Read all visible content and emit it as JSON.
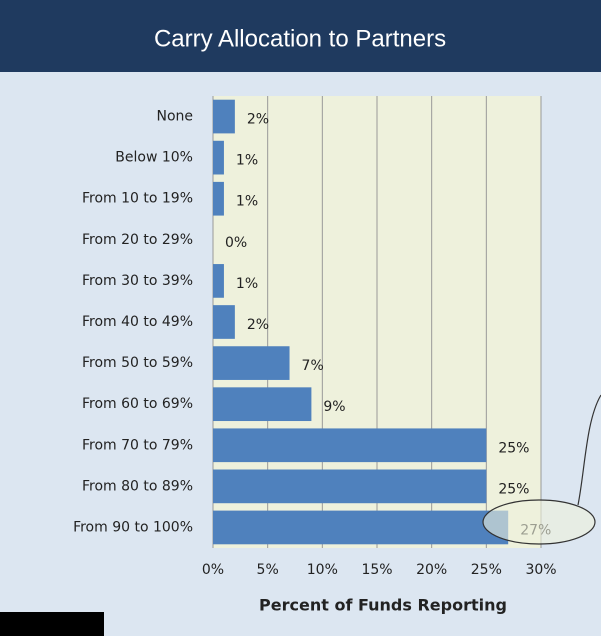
{
  "chart_data": {
    "type": "barh",
    "title": "Carry Allocation to Partners",
    "categories": [
      "None",
      "Below 10%",
      "From 10 to 19%",
      "From 20 to 29%",
      "From 30 to 39%",
      "From 40 to 49%",
      "From 50 to 59%",
      "From 60 to 69%",
      "From 70 to 79%",
      "From 80 to 89%",
      "From 90 to 100%"
    ],
    "values": [
      2,
      1,
      1,
      0,
      1,
      2,
      7,
      9,
      25,
      25,
      27
    ],
    "value_labels": [
      "2%",
      "1%",
      "1%",
      "0%",
      "1%",
      "2%",
      "7%",
      "9%",
      "25%",
      "25%",
      "27%"
    ],
    "color": "#4f81bd",
    "xlim": [
      0,
      30
    ],
    "xticks": [
      {
        "value": 0,
        "label": "0%"
      },
      {
        "value": 5,
        "label": "5%"
      },
      {
        "value": 10,
        "label": "10%"
      },
      {
        "value": 15,
        "label": "15%"
      },
      {
        "value": 20,
        "label": "20%"
      },
      {
        "value": 25,
        "label": "25%"
      },
      {
        "value": 30,
        "label": "30%"
      }
    ],
    "xlabel": "Percent of Funds Reporting",
    "grid": true
  }
}
